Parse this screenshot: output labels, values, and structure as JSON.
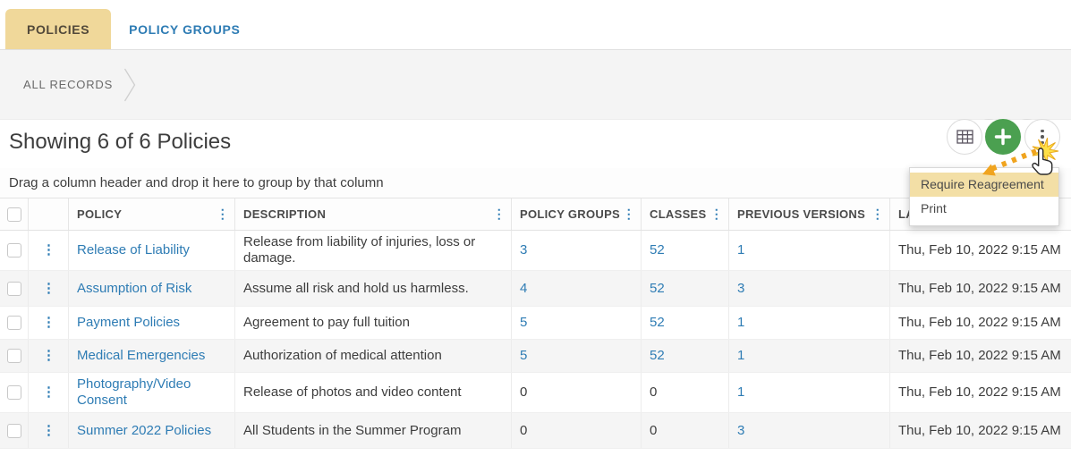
{
  "tabs": {
    "items": [
      {
        "label": "POLICIES",
        "active": true
      },
      {
        "label": "POLICY GROUPS",
        "active": false
      }
    ]
  },
  "breadcrumb": {
    "label": "ALL RECORDS"
  },
  "header": {
    "title": "Showing 6 of 6 Policies"
  },
  "toolbar": {
    "icons": [
      "floppy-disk",
      "star",
      "grid-table",
      "plus",
      "vertical-dots"
    ]
  },
  "group_bar": {
    "text": "Drag a column header and drop it here to group by that column"
  },
  "table": {
    "headers": [
      "POLICY",
      "DESCRIPTION",
      "POLICY GROUPS",
      "CLASSES",
      "PREVIOUS VERSIONS",
      "LA"
    ],
    "rows": [
      {
        "policy": "Release of Liability",
        "description": "Release from liability of injuries, loss or damage.",
        "policy_groups": {
          "text": "3",
          "link": true
        },
        "classes": {
          "text": "52",
          "link": true
        },
        "previous_versions": {
          "text": "1",
          "link": true
        },
        "last_agreed": "Thu, Feb 10, 2022 9:15 AM"
      },
      {
        "policy": "Assumption of Risk",
        "description": "Assume all risk and hold us harmless.",
        "policy_groups": {
          "text": "4",
          "link": true
        },
        "classes": {
          "text": "52",
          "link": true
        },
        "previous_versions": {
          "text": "3",
          "link": true
        },
        "last_agreed": "Thu, Feb 10, 2022 9:15 AM"
      },
      {
        "policy": "Payment Policies",
        "description": "Agreement to pay full tuition",
        "policy_groups": {
          "text": "5",
          "link": true
        },
        "classes": {
          "text": "52",
          "link": true
        },
        "previous_versions": {
          "text": "1",
          "link": true
        },
        "last_agreed": "Thu, Feb 10, 2022 9:15 AM"
      },
      {
        "policy": "Medical Emergencies",
        "description": "Authorization of medical attention",
        "policy_groups": {
          "text": "5",
          "link": true
        },
        "classes": {
          "text": "52",
          "link": true
        },
        "previous_versions": {
          "text": "1",
          "link": true
        },
        "last_agreed": "Thu, Feb 10, 2022 9:15 AM"
      },
      {
        "policy": "Photography/Video Consent",
        "description": "Release of photos and video content",
        "policy_groups": {
          "text": "0",
          "link": false
        },
        "classes": {
          "text": "0",
          "link": false
        },
        "previous_versions": {
          "text": "1",
          "link": true
        },
        "last_agreed": "Thu, Feb 10, 2022 9:15 AM"
      },
      {
        "policy": "Summer 2022 Policies",
        "description": "All Students in the Summer Program",
        "policy_groups": {
          "text": "0",
          "link": false
        },
        "classes": {
          "text": "0",
          "link": false
        },
        "previous_versions": {
          "text": "3",
          "link": true
        },
        "last_agreed": "Thu, Feb 10, 2022 9:15 AM"
      }
    ]
  },
  "menu": {
    "items": [
      {
        "label": "Require Reagreement",
        "highlighted": true
      },
      {
        "label": "Print",
        "highlighted": false
      }
    ]
  },
  "colors": {
    "accent_tan": "#f0d89a",
    "menu_highlight": "#f3dfa6",
    "link_blue": "#2e7cb4",
    "add_green": "#4ba050",
    "arrow_orange": "#f0a41f",
    "starburst_yellow": "#ffe047",
    "strip_gray": "#f4f4f4",
    "alt_row": "#f5f5f5"
  }
}
